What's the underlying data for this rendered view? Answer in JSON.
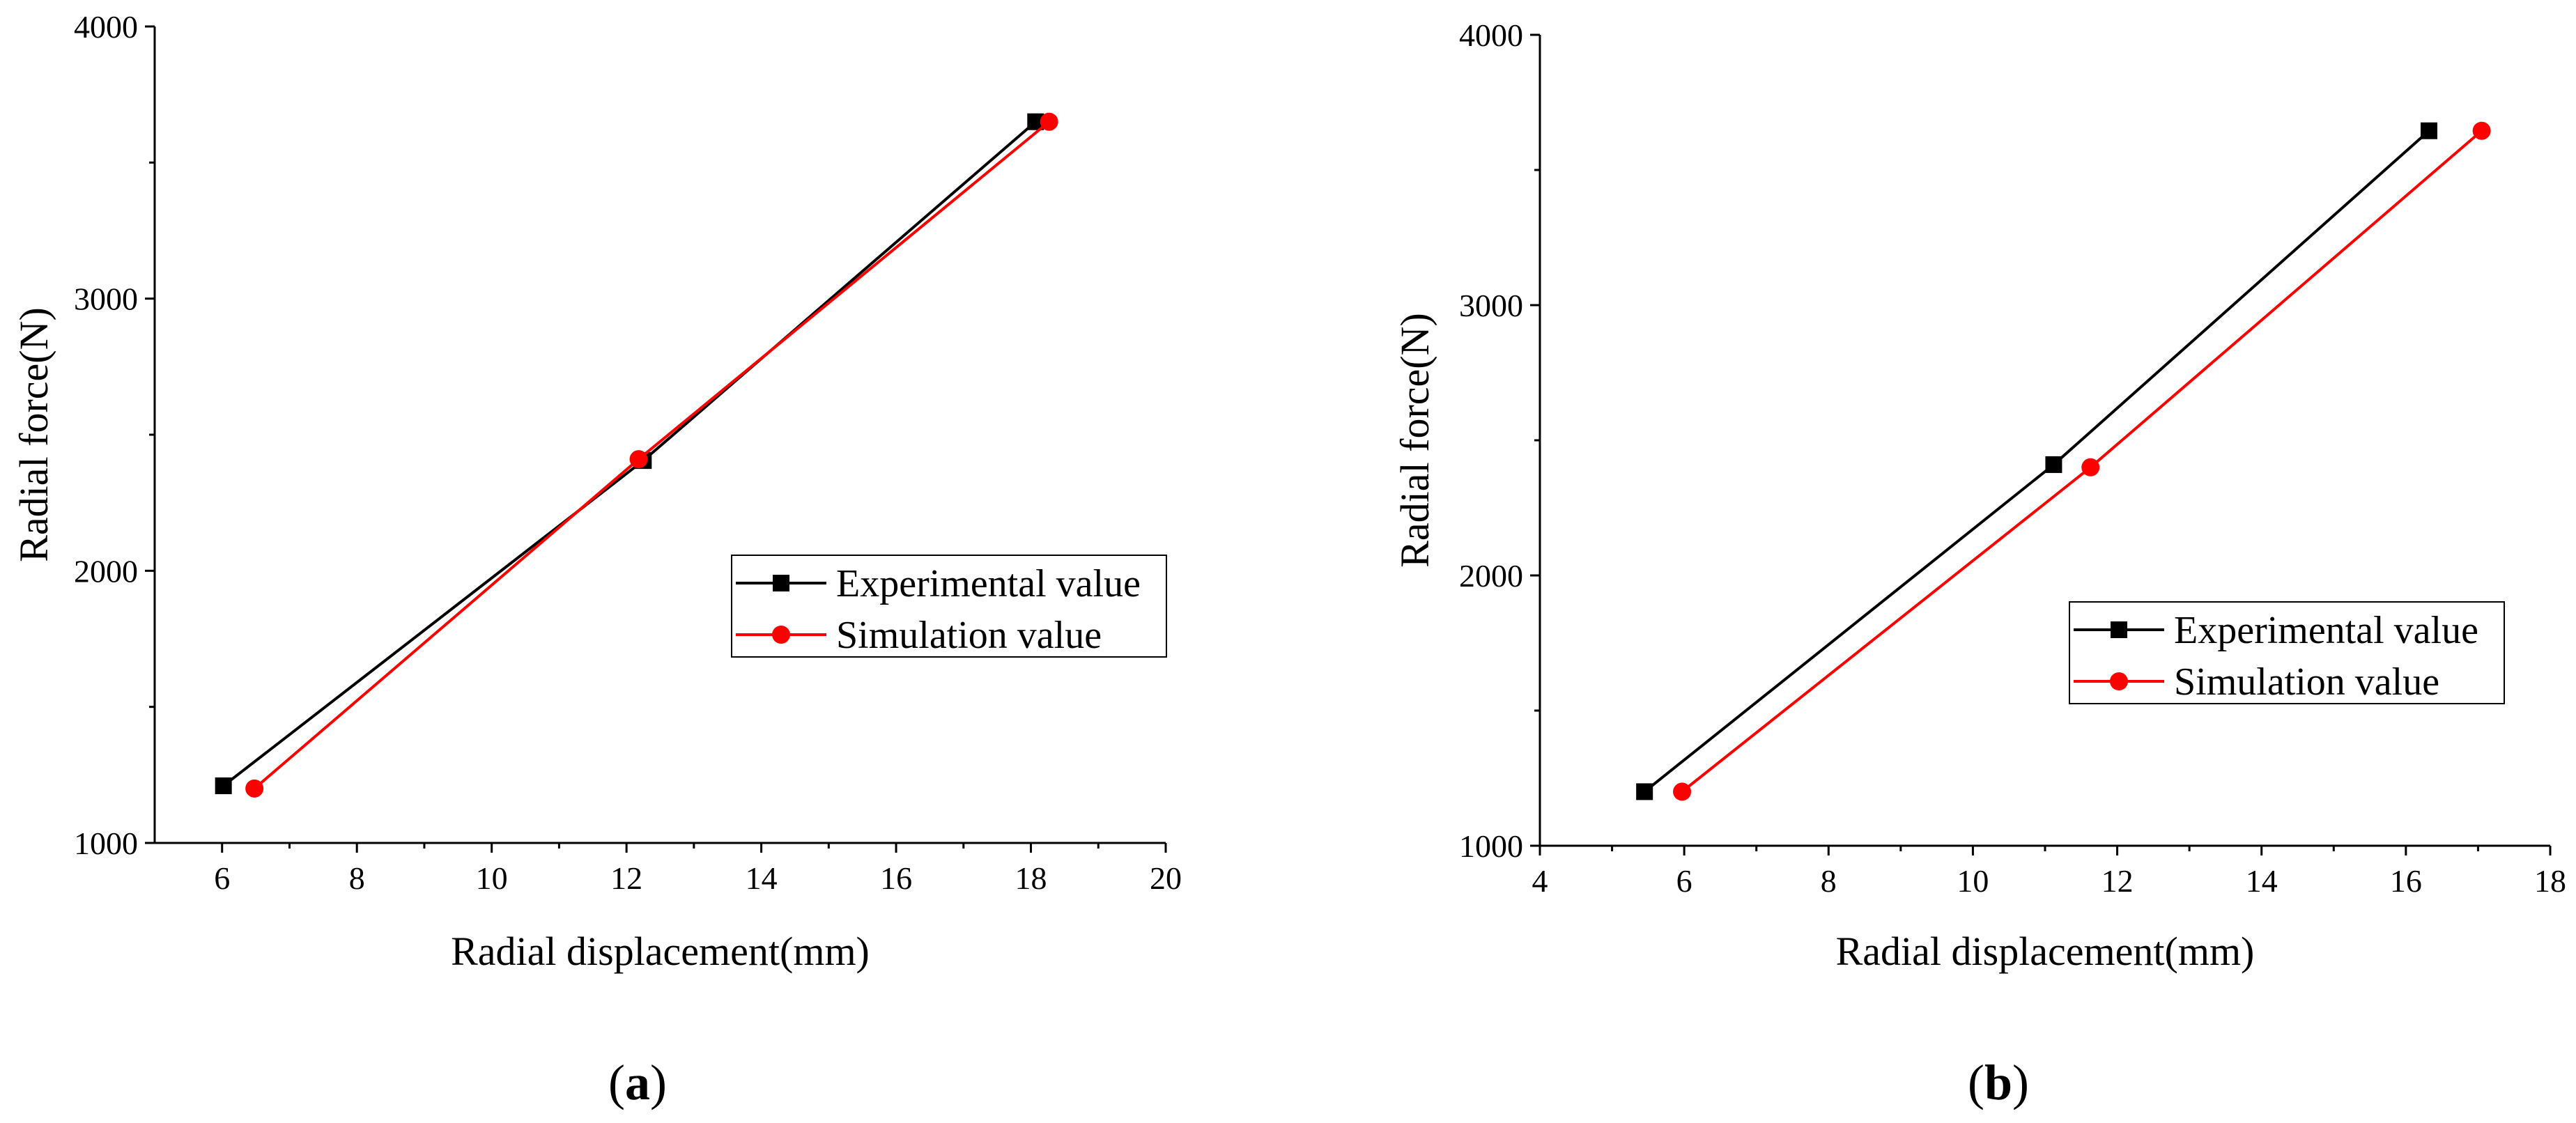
{
  "chart_data": [
    {
      "type": "line",
      "panel_label": "a",
      "xlabel": "Radial displacement(mm)",
      "ylabel": "Radial force(N)",
      "xlim": [
        5,
        20
      ],
      "ylim": [
        1000,
        4000
      ],
      "xticks": [
        6,
        8,
        10,
        12,
        14,
        16,
        18,
        20
      ],
      "yticks": [
        1000,
        2000,
        3000,
        4000
      ],
      "legend_position": "center-right",
      "series": [
        {
          "name": "Experimental value",
          "color": "#000000",
          "marker": "square",
          "x": [
            6.02,
            12.25,
            18.07
          ],
          "y": [
            1210,
            2405,
            3650
          ]
        },
        {
          "name": "Simulation value",
          "color": "#ff0000",
          "marker": "circle",
          "x": [
            6.48,
            12.18,
            18.27
          ],
          "y": [
            1200,
            2410,
            3650
          ]
        }
      ]
    },
    {
      "type": "line",
      "panel_label": "b",
      "xlabel": "Radial displacement(mm)",
      "ylabel": "Radial force(N)",
      "xlim": [
        4,
        18
      ],
      "ylim": [
        1000,
        4000
      ],
      "xticks": [
        4,
        6,
        8,
        10,
        12,
        14,
        16,
        18
      ],
      "yticks": [
        1000,
        2000,
        3000,
        4000
      ],
      "legend_position": "center-right",
      "series": [
        {
          "name": "Experimental value",
          "color": "#000000",
          "marker": "square",
          "x": [
            5.45,
            11.12,
            16.32
          ],
          "y": [
            1200,
            2410,
            3645
          ]
        },
        {
          "name": "Simulation value",
          "color": "#ff0000",
          "marker": "circle",
          "x": [
            5.97,
            11.63,
            17.05
          ],
          "y": [
            1200,
            2400,
            3645
          ]
        }
      ]
    }
  ]
}
